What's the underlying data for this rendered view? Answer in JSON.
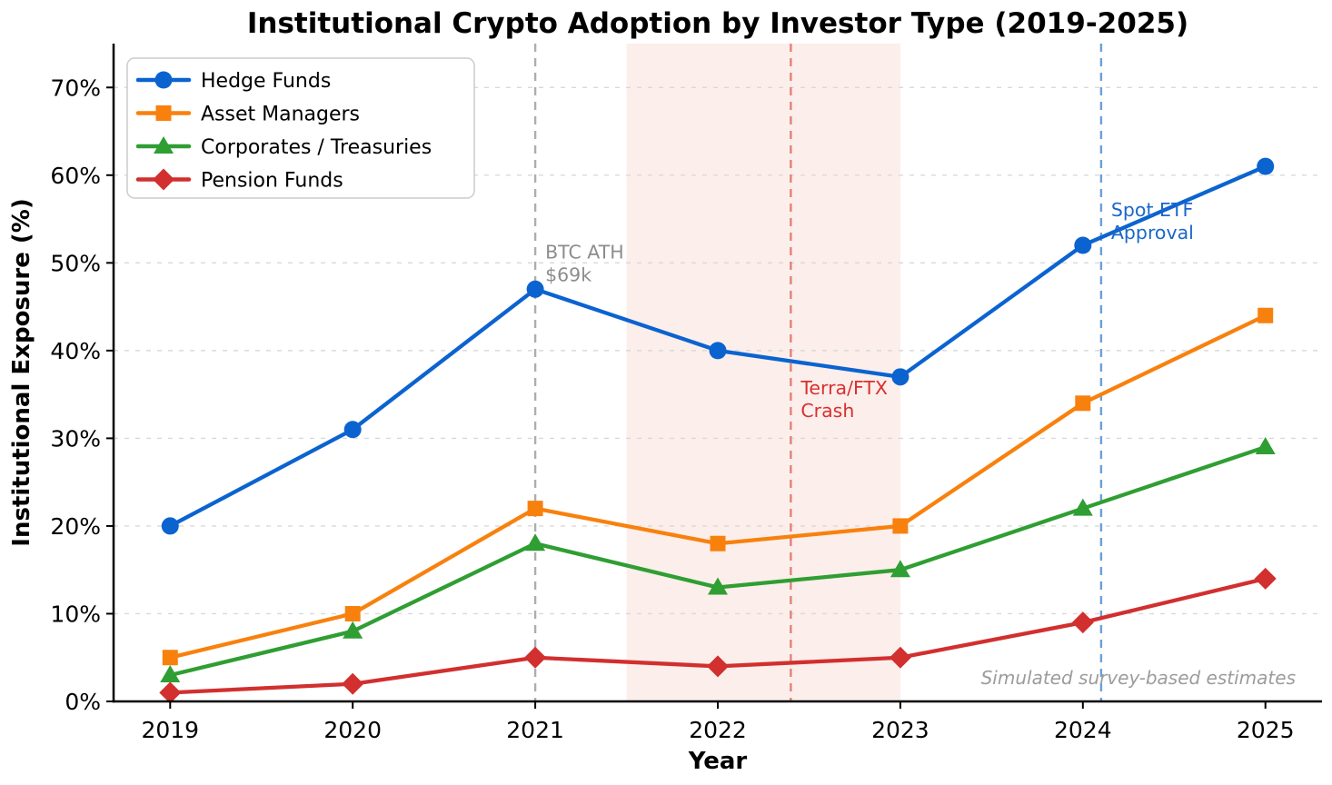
{
  "title": "Institutional Crypto Adoption by Investor Type (2019-2025)",
  "xlabel": "Year",
  "ylabel": "Institutional Exposure (%)",
  "watermark": "Simulated survey-based estimates",
  "chart_data": {
    "type": "line",
    "x": [
      2019,
      2020,
      2021,
      2022,
      2023,
      2024,
      2025
    ],
    "series": [
      {
        "name": "Hedge Funds",
        "marker": "circle",
        "color": "#0b63d0",
        "values": [
          20,
          31,
          47,
          40,
          37,
          52,
          61
        ]
      },
      {
        "name": "Asset Managers",
        "marker": "square",
        "color": "#f8810e",
        "values": [
          5,
          10,
          22,
          18,
          20,
          34,
          44
        ]
      },
      {
        "name": "Corporates / Treasuries",
        "marker": "triangle",
        "color": "#2f9e33",
        "values": [
          3,
          8,
          18,
          13,
          15,
          22,
          29
        ]
      },
      {
        "name": "Pension Funds",
        "marker": "diamond",
        "color": "#d22f2f",
        "values": [
          1,
          2,
          5,
          4,
          5,
          9,
          14
        ]
      }
    ],
    "xlim": [
      2018.69,
      2025.31
    ],
    "ylim": [
      0,
      75
    ],
    "yticks": [
      0,
      10,
      20,
      30,
      40,
      50,
      60,
      70
    ],
    "ytick_suffix": "%",
    "grid": "horizontal-dashed",
    "grid_color": "#d9d9d9",
    "legend_position": "upper-left",
    "shaded_region": {
      "x0": 2021.5,
      "x1": 2023.0,
      "color": "#fceeea"
    },
    "annotations": [
      {
        "lines": [
          "BTC ATH",
          "$69k"
        ],
        "x": 2021,
        "label_y": 50.5,
        "line_color": "#adadad",
        "label_color": "#8c8c8c"
      },
      {
        "lines": [
          "Terra/FTX",
          "Crash"
        ],
        "x": 2022.4,
        "label_y": 35.0,
        "line_color": "#e58078",
        "label_color": "#d8302f"
      },
      {
        "lines": [
          "Spot ETF",
          "Approval"
        ],
        "x": 2024.1,
        "label_y": 55.3,
        "line_color": "#6aa0da",
        "label_color": "#1a67c9"
      }
    ]
  }
}
